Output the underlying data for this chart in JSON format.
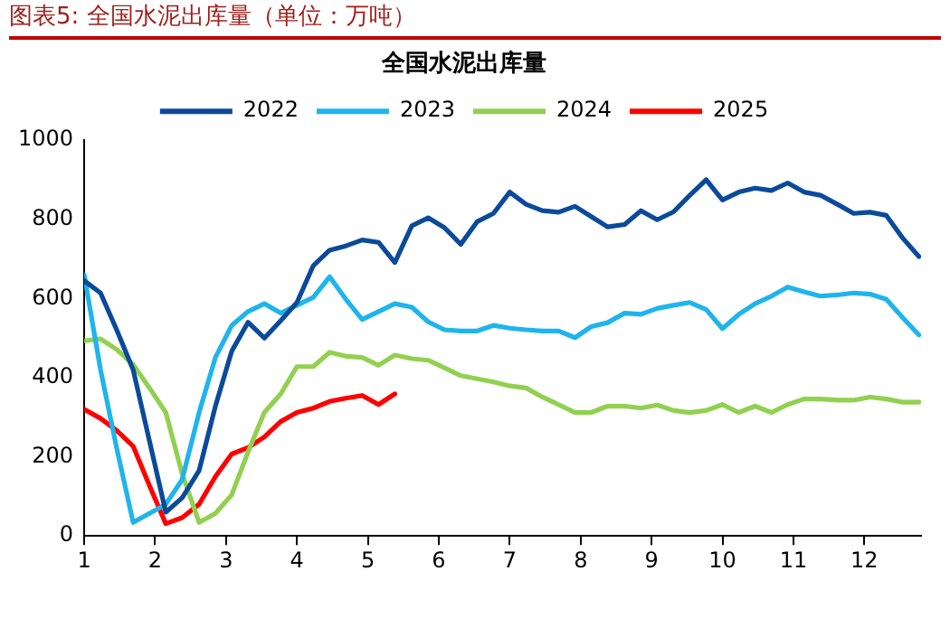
{
  "chart_data": {
    "type": "line",
    "title": "图表5: 全国水泥出库量（单位：万吨）",
    "subtitle": "全国水泥出库量",
    "x": [
      1,
      1.23,
      1.46,
      1.69,
      1.92,
      2.15,
      2.38,
      2.62,
      2.85,
      3.08,
      3.31,
      3.54,
      3.77,
      4,
      4.23,
      4.46,
      4.69,
      4.92,
      5.15,
      5.38,
      5.62,
      5.85,
      6.08,
      6.31,
      6.54,
      6.77,
      7,
      7.23,
      7.46,
      7.69,
      7.92,
      8.15,
      8.38,
      8.62,
      8.85,
      9.08,
      9.31,
      9.54,
      9.77,
      10,
      10.23,
      10.46,
      10.69,
      10.92,
      11.15,
      11.38,
      11.62,
      11.85,
      12.08,
      12.31,
      12.54,
      12.77
    ],
    "series": [
      {
        "name": "2022",
        "color": "#0b4a9a",
        "values": [
          645,
          614,
          520,
          420,
          240,
          60,
          96,
          165,
          328,
          467,
          540,
          500,
          544,
          590,
          683,
          722,
          733,
          748,
          742,
          691,
          784,
          804,
          779,
          737,
          794,
          815,
          869,
          838,
          822,
          818,
          833,
          807,
          781,
          787,
          822,
          799,
          819,
          861,
          900,
          849,
          869,
          879,
          873,
          892,
          869,
          861,
          838,
          815,
          818,
          810,
          753,
          706
        ]
      },
      {
        "name": "2023",
        "color": "#1fb4ec",
        "values": [
          660,
          420,
          220,
          34,
          57,
          80,
          142,
          312,
          451,
          532,
          567,
          587,
          563,
          583,
          603,
          655,
          598,
          547,
          567,
          587,
          578,
          541,
          521,
          518,
          518,
          532,
          525,
          521,
          518,
          518,
          501,
          529,
          539,
          563,
          560,
          575,
          583,
          590,
          572,
          524,
          560,
          587,
          606,
          629,
          617,
          606,
          609,
          614,
          611,
          598,
          552,
          508
        ]
      },
      {
        "name": "2024",
        "color": "#92d050",
        "values": [
          493,
          498,
          471,
          433,
          374,
          312,
          158,
          34,
          57,
          104,
          212,
          312,
          359,
          428,
          428,
          464,
          454,
          451,
          431,
          457,
          448,
          444,
          425,
          405,
          397,
          389,
          379,
          374,
          351,
          332,
          312,
          312,
          328,
          328,
          323,
          331,
          317,
          312,
          317,
          332,
          312,
          328,
          312,
          332,
          346,
          346,
          343,
          343,
          351,
          346,
          338,
          338
        ]
      },
      {
        "name": "2025",
        "color": "#ff0000",
        "values": [
          320,
          297,
          266,
          227,
          127,
          31,
          46,
          80,
          150,
          207,
          223,
          250,
          289,
          312,
          323,
          340,
          348,
          355,
          332,
          359,
          null,
          null,
          null,
          null,
          null,
          null,
          null,
          null,
          null,
          null,
          null,
          null,
          null,
          null,
          null,
          null,
          null,
          null,
          null,
          null,
          null,
          null,
          null,
          null,
          null,
          null,
          null,
          null,
          null,
          null,
          null,
          null
        ]
      }
    ],
    "xlim": [
      1,
      12.8
    ],
    "xticks": [
      1,
      2,
      3,
      4,
      5,
      6,
      7,
      8,
      9,
      10,
      11,
      12
    ],
    "ylim": [
      0,
      1000
    ],
    "yticks": [
      0,
      200,
      400,
      600,
      800,
      1000
    ],
    "grid": false,
    "legend": "top",
    "marker": "none",
    "line_style": "solid"
  }
}
